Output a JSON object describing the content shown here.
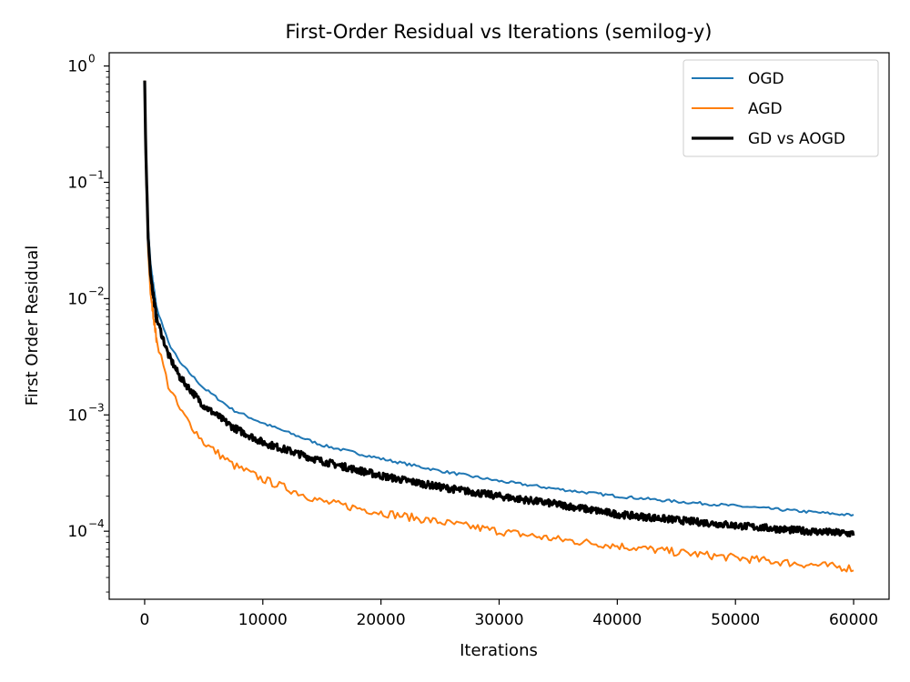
{
  "chart_data": {
    "type": "line",
    "title": "First-Order Residual vs Iterations (semilog-y)",
    "xlabel": "Iterations",
    "ylabel": "First Order Residual",
    "yscale": "log",
    "xlim": [
      -3000,
      63000
    ],
    "ylim": [
      2.6e-05,
      1.3
    ],
    "xticks": [
      0,
      10000,
      20000,
      30000,
      40000,
      50000,
      60000
    ],
    "xtick_labels": [
      "0",
      "10000",
      "20000",
      "30000",
      "40000",
      "50000",
      "60000"
    ],
    "yticks": [
      {
        "value": 1,
        "base": "10",
        "exp": "0"
      },
      {
        "value": 0.1,
        "base": "10",
        "exp": "−1"
      },
      {
        "value": 0.01,
        "base": "10",
        "exp": "−2"
      },
      {
        "value": 0.001,
        "base": "10",
        "exp": "−3"
      },
      {
        "value": 0.0001,
        "base": "10",
        "exp": "−4"
      }
    ],
    "grid": false,
    "legend_position": "top-right",
    "series": [
      {
        "name": "OGD",
        "color": "#1f77b4",
        "line_weight": "normal",
        "x": [
          0,
          100,
          300,
          500,
          1000,
          2000,
          3000,
          5000,
          7500,
          10000,
          15000,
          20000,
          25000,
          30000,
          35000,
          40000,
          45000,
          50000,
          55000,
          60000
        ],
        "y": [
          0.75,
          0.2,
          0.04,
          0.02,
          0.0085,
          0.0042,
          0.0028,
          0.0017,
          0.0011,
          0.00085,
          0.00055,
          0.00042,
          0.00033,
          0.00027,
          0.00023,
          0.0002,
          0.00018,
          0.000165,
          0.00015,
          0.000137
        ]
      },
      {
        "name": "AGD",
        "color": "#ff7f0e",
        "line_weight": "normal",
        "x": [
          0,
          100,
          300,
          500,
          1000,
          2000,
          3000,
          5000,
          7500,
          10000,
          15000,
          20000,
          25000,
          30000,
          35000,
          40000,
          45000,
          50000,
          55000,
          60000
        ],
        "y": [
          0.75,
          0.15,
          0.025,
          0.011,
          0.0045,
          0.0018,
          0.0011,
          0.00058,
          0.00037,
          0.00028,
          0.00018,
          0.000145,
          0.00012,
          0.0001,
          8.5e-05,
          7.5e-05,
          6.6e-05,
          5.9e-05,
          5.3e-05,
          4.8e-05
        ]
      },
      {
        "name": "GD vs AOGD",
        "color": "#000000",
        "line_weight": "bold",
        "x": [
          0,
          100,
          300,
          500,
          1000,
          2000,
          3000,
          5000,
          7500,
          10000,
          15000,
          20000,
          25000,
          30000,
          35000,
          40000,
          45000,
          50000,
          55000,
          60000
        ],
        "y": [
          0.75,
          0.18,
          0.033,
          0.016,
          0.0068,
          0.0033,
          0.0021,
          0.0012,
          0.00078,
          0.00058,
          0.0004,
          0.0003,
          0.00024,
          0.0002,
          0.00017,
          0.00014,
          0.000125,
          0.000112,
          0.000102,
          9.5e-05
        ]
      }
    ]
  }
}
